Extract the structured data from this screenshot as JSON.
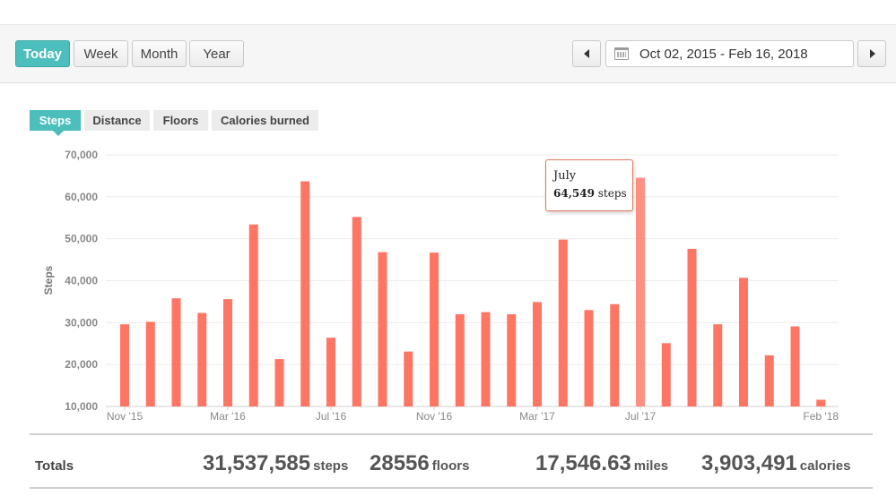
{
  "range_buttons": [
    "Today",
    "Week",
    "Month",
    "Year"
  ],
  "active_range": "Today",
  "date_range": "Oct 02, 2015 - Feb 16, 2018",
  "metric_tabs": [
    "Steps",
    "Distance",
    "Floors",
    "Calories burned"
  ],
  "active_metric": "Steps",
  "colors": {
    "bar": "#ff7563",
    "bar_highlight": "#ff8f80",
    "accent": "#4cbfbc"
  },
  "tooltip": {
    "label": "July",
    "value": "64,549",
    "unit": "steps"
  },
  "totals": {
    "label": "Totals",
    "items": [
      {
        "value": "31,537,585",
        "unit": "steps"
      },
      {
        "value": "28556",
        "unit": "floors"
      },
      {
        "value": "17,546.63",
        "unit": "miles"
      },
      {
        "value": "3,903,491",
        "unit": "calories"
      }
    ]
  },
  "chart_data": {
    "type": "bar",
    "ylabel": "Steps",
    "ylim": [
      10000,
      70000
    ],
    "y_ticks": [
      "10,000",
      "20,000",
      "30,000",
      "40,000",
      "50,000",
      "60,000",
      "70,000"
    ],
    "x_tick_labels": [
      {
        "index": 0,
        "label": "Nov '15"
      },
      {
        "index": 4,
        "label": "Mar '16"
      },
      {
        "index": 8,
        "label": "Jul '16"
      },
      {
        "index": 12,
        "label": "Nov '16"
      },
      {
        "index": 16,
        "label": "Mar '17"
      },
      {
        "index": 20,
        "label": "Jul '17"
      },
      {
        "index": 27,
        "label": "Feb '18"
      }
    ],
    "highlight_index": 20,
    "values": [
      29600,
      30200,
      35800,
      32300,
      35600,
      53400,
      21300,
      63700,
      26400,
      55200,
      46800,
      23100,
      46700,
      32000,
      32500,
      32000,
      34900,
      49800,
      33000,
      34400,
      64549,
      25100,
      47600,
      29600,
      40700,
      22200,
      29100,
      11600
    ],
    "grid": true
  }
}
